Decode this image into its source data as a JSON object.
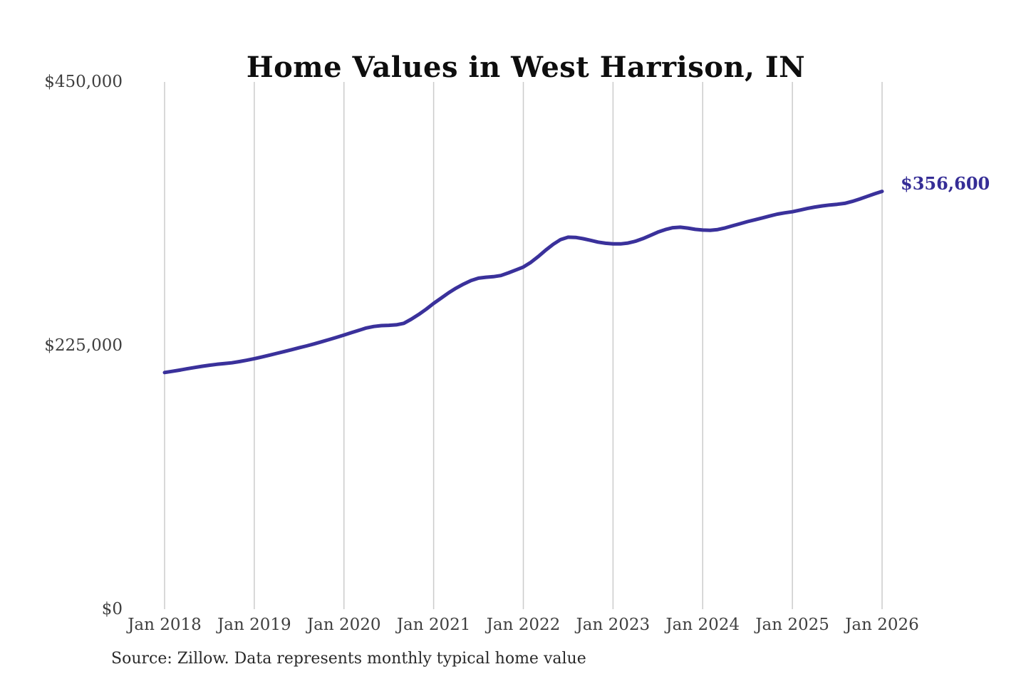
{
  "title": "Home Values in West Harrison, IN",
  "source_note": "Source: Zillow. Data represents monthly typical home value",
  "annotation": {
    "label": "$356,600"
  },
  "colors": {
    "line": "#3a319b",
    "annotation_text": "#352d96",
    "grid": "#cbcbcb",
    "axis_text": "#3f3f3f",
    "title_text": "#0e0e0e",
    "background": "#ffffff"
  },
  "chart_data": {
    "type": "line",
    "title": "Home Values in West Harrison, IN",
    "x_interval": "monthly",
    "x_start": "2018-01",
    "x_end": "2026-01",
    "xtick_labels": [
      "Jan 2018",
      "Jan 2019",
      "Jan 2020",
      "Jan 2021",
      "Jan 2022",
      "Jan 2023",
      "Jan 2024",
      "Jan 2025",
      "Jan 2026"
    ],
    "yticks": [
      0,
      225000,
      450000
    ],
    "ytick_labels": [
      "$0",
      "$225,000",
      "$450,000"
    ],
    "ylim": [
      0,
      450000
    ],
    "grid": "vertical",
    "legend": "none",
    "last_value_label": "$356,600",
    "values": [
      202000,
      203000,
      204000,
      205200,
      206300,
      207300,
      208200,
      209000,
      209600,
      210300,
      211300,
      212500,
      213800,
      215200,
      216700,
      218300,
      219900,
      221500,
      223100,
      224700,
      226400,
      228200,
      230100,
      232000,
      234000,
      236000,
      238000,
      240000,
      241300,
      242000,
      242300,
      242700,
      244000,
      247500,
      251500,
      256000,
      261000,
      265500,
      270000,
      274000,
      277500,
      280500,
      282500,
      283300,
      283800,
      284800,
      287000,
      289500,
      292000,
      296000,
      301000,
      306500,
      311500,
      315500,
      317500,
      317300,
      316200,
      314800,
      313300,
      312300,
      311800,
      311800,
      312500,
      314000,
      316300,
      319000,
      321800,
      324000,
      325600,
      326000,
      325300,
      324200,
      323600,
      323400,
      324000,
      325400,
      327200,
      329000,
      330800,
      332400,
      334000,
      335600,
      337200,
      338300,
      339200,
      340600,
      342000,
      343200,
      344200,
      345000,
      345600,
      346400,
      348000,
      350000,
      352300,
      354500,
      356600
    ]
  }
}
